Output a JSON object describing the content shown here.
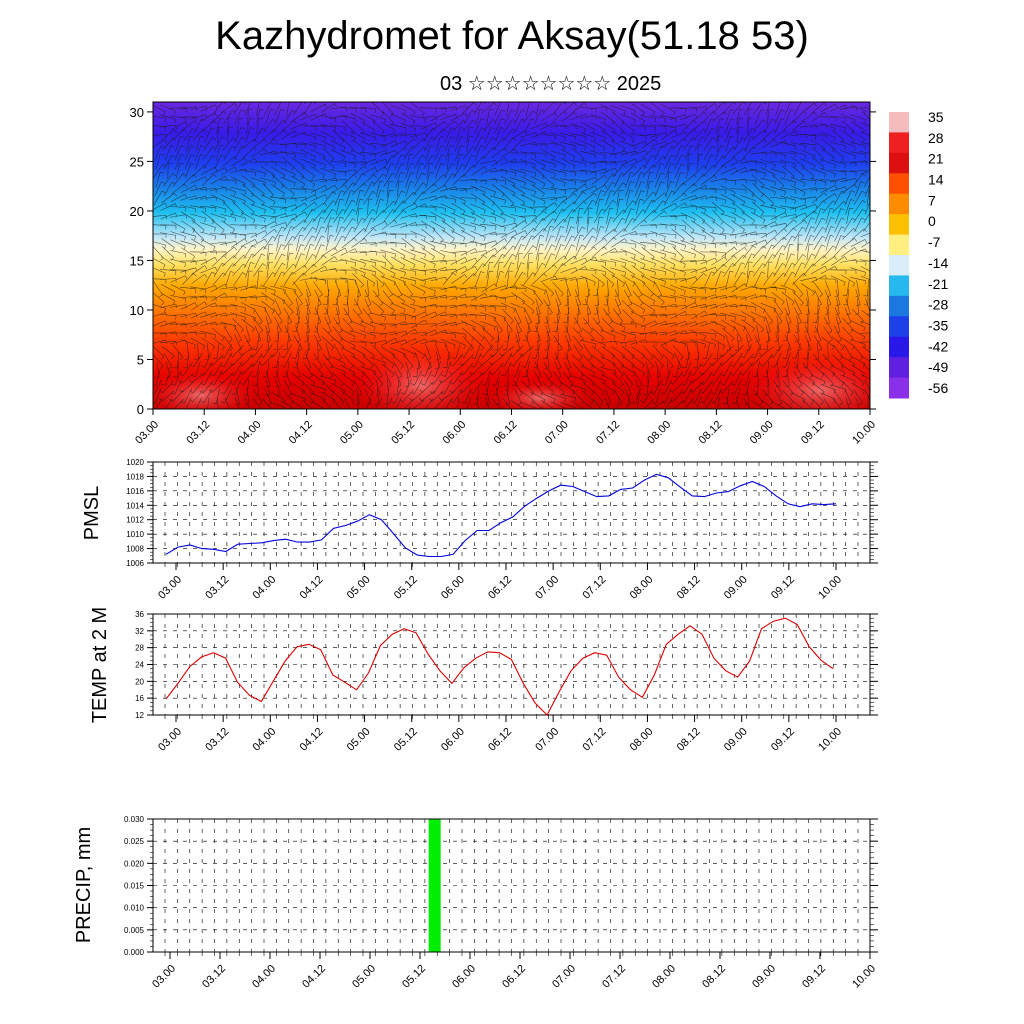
{
  "header": {
    "title": "Kazhydromet for Aksay(51.18 53)",
    "subtitle": "03 ☆☆☆☆☆☆☆☆ 2025"
  },
  "chart_data": [
    {
      "type": "heatmap",
      "title": "Kazhydromet for Aksay(51.18 53)",
      "subtitle": "03 ☆☆☆☆☆☆☆☆ 2025",
      "xlabel": "",
      "ylabel": "",
      "x_ticks": [
        "03.00",
        "03.12",
        "04.00",
        "04.12",
        "05.00",
        "05.12",
        "06.00",
        "06.12",
        "07.00",
        "07.12",
        "08.00",
        "08.12",
        "09.00",
        "09.12",
        "10.00"
      ],
      "y_ticks": [
        0,
        5,
        10,
        15,
        20,
        25,
        30
      ],
      "ylim": [
        0,
        31
      ],
      "colorbar_labels": [
        "35",
        "28",
        "21",
        "14",
        "7",
        "0",
        "-7",
        "-14",
        "-21",
        "-28",
        "-35",
        "-42",
        "-49",
        "-56"
      ],
      "colors": [
        "#f4bcbc",
        "#ee2020",
        "#dd1010",
        "#ff5000",
        "#ff8c00",
        "#ffc000",
        "#ffee80",
        "#d9eef8",
        "#27b8f0",
        "#1a78e0",
        "#1e40e8",
        "#2a18e8",
        "#6020e0",
        "#8a30e8"
      ],
      "overlay": "wind barbs"
    },
    {
      "type": "line",
      "ylabel": "PMSL",
      "ylim": [
        1006,
        1020
      ],
      "y_ticks": [
        "1006",
        "1008",
        "1010",
        "1012",
        "1014",
        "1016",
        "1018",
        "1020"
      ],
      "x_ticks": [
        "03.00",
        "03.12",
        "04.00",
        "04.12",
        "05.00",
        "05.12",
        "06.00",
        "06.12",
        "07.00",
        "07.12",
        "08.00",
        "08.12",
        "09.00",
        "09.12",
        "10.00"
      ],
      "color": "#0000dd",
      "values": [
        1007.2,
        1008.2,
        1008.5,
        1008.0,
        1007.9,
        1007.6,
        1008.6,
        1008.7,
        1008.8,
        1009.1,
        1009.3,
        1008.9,
        1008.9,
        1009.2,
        1010.8,
        1011.2,
        1011.8,
        1012.7,
        1012.0,
        1010.1,
        1008.1,
        1007.1,
        1006.9,
        1006.9,
        1007.2,
        1009.1,
        1010.5,
        1010.5,
        1011.6,
        1012.4,
        1013.9,
        1015.0,
        1016.0,
        1016.8,
        1016.6,
        1015.9,
        1015.2,
        1015.3,
        1016.2,
        1016.4,
        1017.5,
        1018.3,
        1017.8,
        1016.5,
        1015.3,
        1015.2,
        1015.7,
        1015.9,
        1016.7,
        1017.3,
        1016.6,
        1015.3,
        1014.2,
        1013.8,
        1014.2,
        1014.1,
        1014.2
      ]
    },
    {
      "type": "line",
      "ylabel": "TEMP at 2 M",
      "ylim": [
        12,
        36
      ],
      "y_ticks": [
        "12",
        "16",
        "20",
        "24",
        "28",
        "32",
        "36"
      ],
      "x_ticks": [
        "03.00",
        "03.12",
        "04.00",
        "04.12",
        "05.00",
        "05.12",
        "06.00",
        "06.12",
        "07.00",
        "07.12",
        "08.00",
        "08.12",
        "09.00",
        "09.12",
        "10.00"
      ],
      "color": "#dd0000",
      "values": [
        15.8,
        19.5,
        23.5,
        25.8,
        26.8,
        25.5,
        19.8,
        16.7,
        15.2,
        20.0,
        24.8,
        28.2,
        28.8,
        27.5,
        21.5,
        19.8,
        18.0,
        22.0,
        28.5,
        31.2,
        32.5,
        31.5,
        26.5,
        22.5,
        19.5,
        23.2,
        25.5,
        27.0,
        26.8,
        25.2,
        19.5,
        14.8,
        12.0,
        17.5,
        22.5,
        25.5,
        26.8,
        26.2,
        21.0,
        18.0,
        16.2,
        21.5,
        28.8,
        31.2,
        33.2,
        31.2,
        25.5,
        22.5,
        21.0,
        24.8,
        32.5,
        34.3,
        35.0,
        33.5,
        28.2,
        25.0,
        23.0
      ]
    },
    {
      "type": "bar",
      "ylabel": "PRECIP, mm",
      "ylim": [
        0,
        0.03
      ],
      "y_ticks": [
        "0.000",
        "0.005",
        "0.010",
        "0.015",
        "0.020",
        "0.025",
        "0.030"
      ],
      "x_ticks": [
        "03.00",
        "03.12",
        "04.00",
        "04.12",
        "05.00",
        "05.12",
        "06.00",
        "06.12",
        "07.00",
        "07.12",
        "08.00",
        "08.12",
        "09.00",
        "09.12",
        "10.00"
      ],
      "color": "#00ee00",
      "bars": [
        {
          "x": "05.18",
          "value": 0.03
        }
      ]
    }
  ]
}
